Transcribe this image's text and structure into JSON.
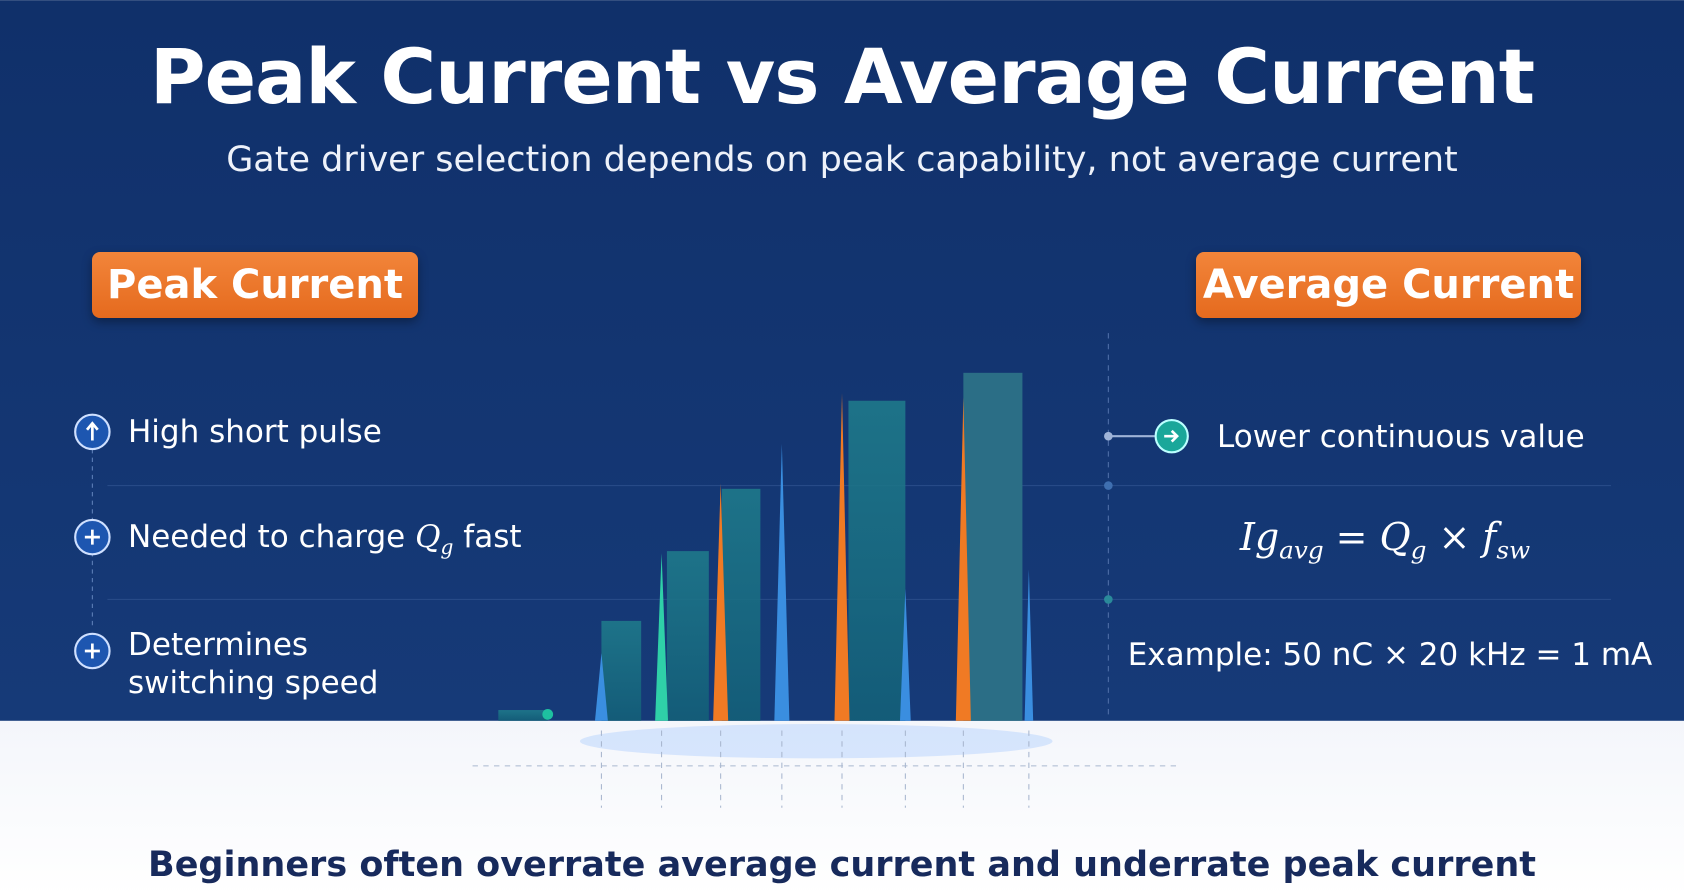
{
  "header": {
    "title": "Peak Current vs Average Current",
    "subtitle": "Gate driver selection depends on peak capability, not average current"
  },
  "left": {
    "label": "Peak Current",
    "items": [
      {
        "text": "High short pulse"
      },
      {
        "text": "Needed to charge",
        "symbol": "Q",
        "sub": "g",
        "suffix": "fast"
      },
      {
        "text": "Determines",
        "line2": "switching speed"
      }
    ]
  },
  "right": {
    "label": "Average Current",
    "items": [
      {
        "text": "Lower continuous value"
      }
    ],
    "formula": [
      {
        "text": "Ig",
        "sub": "avg"
      },
      {
        "text": "="
      },
      {
        "text": "Q",
        "sub": "g"
      },
      {
        "text": "×"
      },
      {
        "text": "f",
        "sub": "sw"
      }
    ],
    "example": "Example: 50 nC × 20 kHz = 1 mA"
  },
  "footer": "Beginners often overrate average current and underrate peak current"
}
